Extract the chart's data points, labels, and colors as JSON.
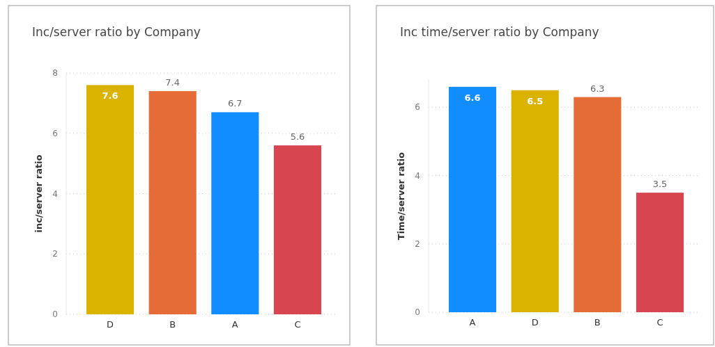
{
  "chart_data": [
    {
      "type": "bar",
      "title": "Inc/server ratio by Company",
      "ylabel": "inc/server ratio",
      "categories": [
        "D",
        "B",
        "A",
        "C"
      ],
      "values": [
        7.6,
        7.4,
        6.7,
        5.6
      ],
      "colors": [
        "#d9b300",
        "#e66c37",
        "#118dff",
        "#d64550"
      ],
      "ylim": [
        0,
        8
      ],
      "yticks": [
        0,
        2,
        4,
        6,
        8
      ],
      "grid": "y",
      "data_labels": true
    },
    {
      "type": "bar",
      "title": "Inc time/server ratio by Company",
      "ylabel": "Time/server ratio",
      "categories": [
        "A",
        "D",
        "B",
        "C"
      ],
      "values": [
        6.6,
        6.5,
        6.3,
        3.5
      ],
      "colors": [
        "#118dff",
        "#d9b300",
        "#e66c37",
        "#d64550"
      ],
      "ylim": [
        0,
        6.8
      ],
      "yticks": [
        0,
        2,
        4,
        6
      ],
      "grid": "y",
      "data_labels": true
    }
  ]
}
